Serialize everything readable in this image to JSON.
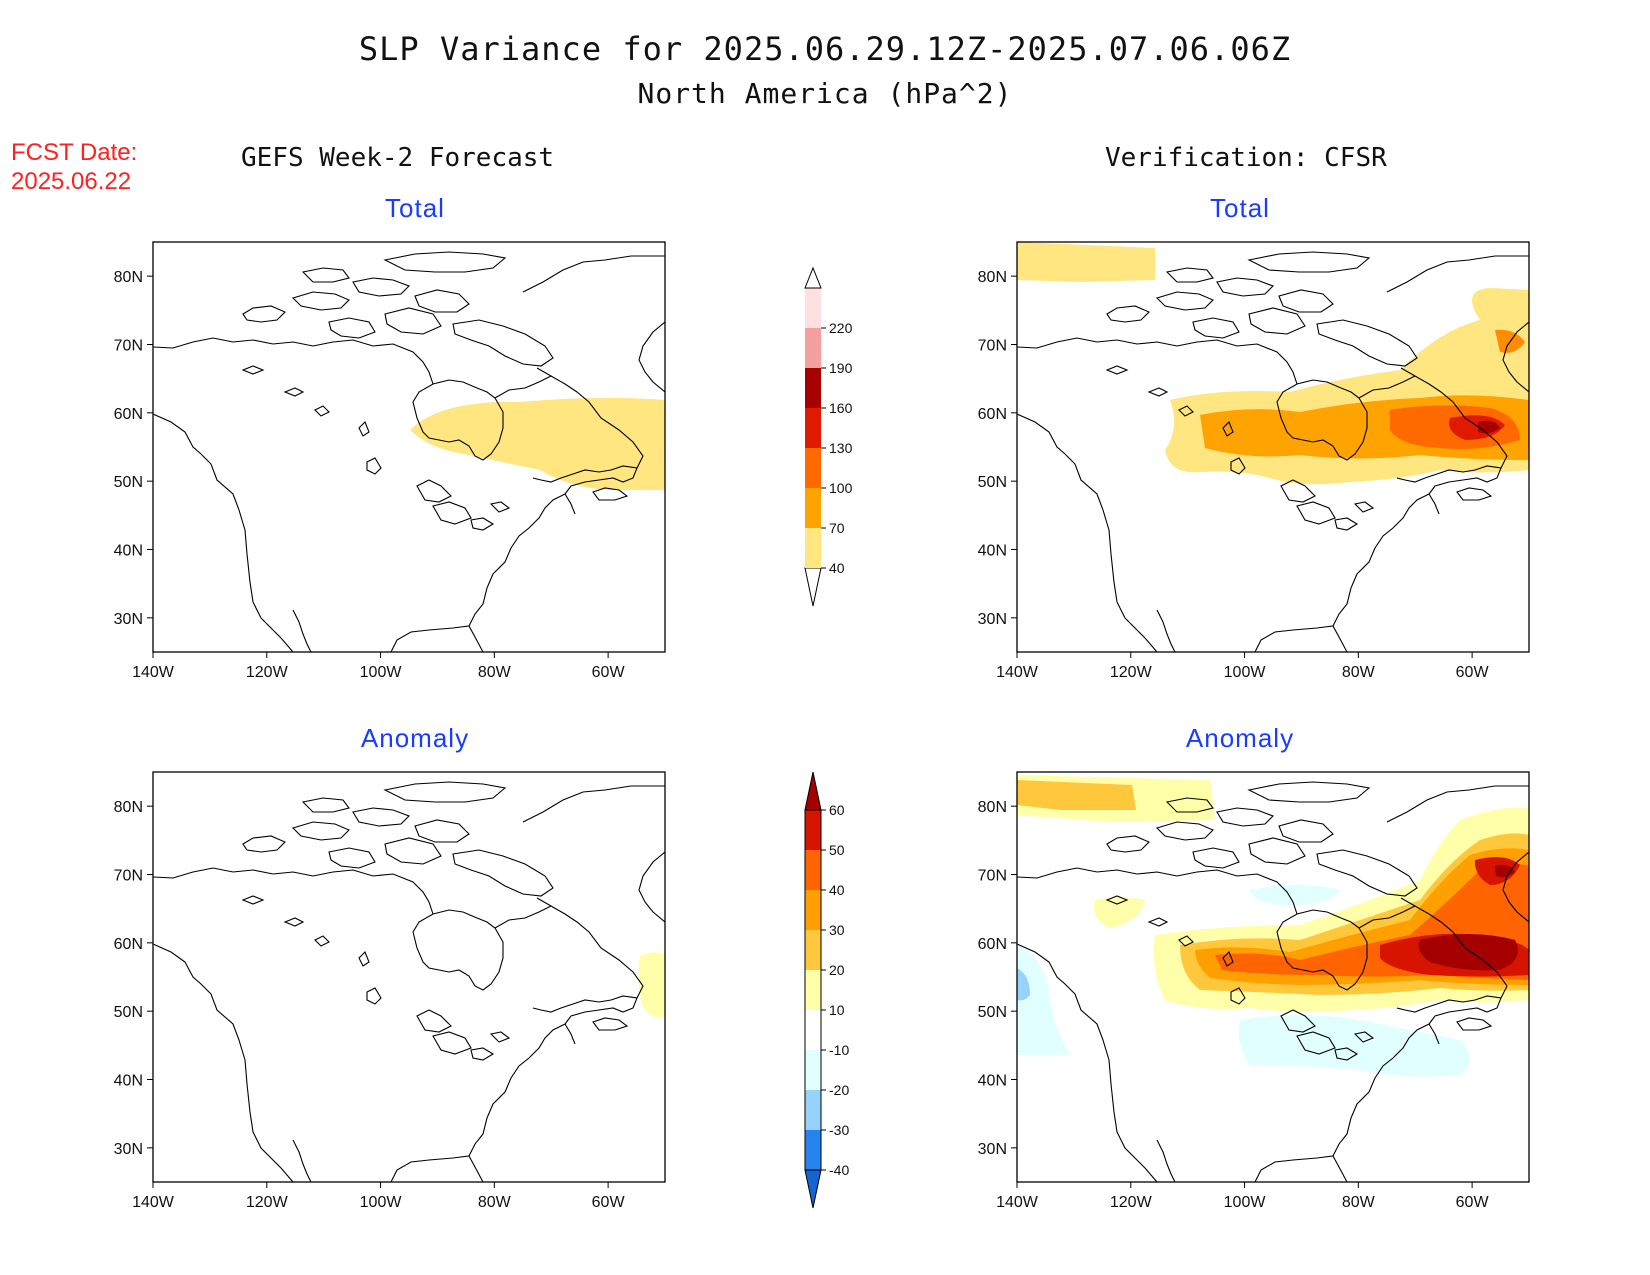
{
  "title": "SLP Variance for 2025.06.29.12Z-2025.07.06.06Z",
  "subtitle": "North America (hPa^2)",
  "fcst_date_label": "FCST Date:",
  "fcst_date": "2025.06.22",
  "left_column_heading": "GEFS Week-2 Forecast",
  "right_column_heading": "Verification: CFSR",
  "panels": {
    "tl": {
      "title": "Total"
    },
    "tr": {
      "title": "Total"
    },
    "bl": {
      "title": "Anomaly"
    },
    "br": {
      "title": "Anomaly"
    }
  },
  "axes": {
    "lat_ticks": [
      "80N",
      "70N",
      "60N",
      "50N",
      "40N",
      "30N"
    ],
    "lon_ticks": [
      "140W",
      "120W",
      "100W",
      "80W",
      "60W"
    ],
    "lat_range": [
      25,
      85
    ],
    "lon_range": [
      -140,
      -50
    ]
  },
  "total_colorbar": {
    "levels": [
      "40",
      "70",
      "100",
      "130",
      "160",
      "190",
      "220"
    ],
    "colors": [
      "#ffe680",
      "#ffa300",
      "#ff6a00",
      "#e01a00",
      "#a60000",
      "#f4a0a0",
      "#fde0e0"
    ]
  },
  "anomaly_colorbar": {
    "levels": [
      "-40",
      "-30",
      "-20",
      "-10",
      "10",
      "20",
      "30",
      "40",
      "50",
      "60"
    ],
    "colors": [
      "#1464d2",
      "#2882f0",
      "#96d2fa",
      "#e0fffe",
      "#ffffff",
      "#ffffaa",
      "#ffc83c",
      "#ffa000",
      "#ff6400",
      "#d71400",
      "#a50000"
    ]
  },
  "chart_data": {
    "type": "heatmap",
    "variable": "SLP Variance",
    "units": "hPa^2",
    "period": "2025.06.29.12Z-2025.07.06.06Z",
    "region": "North America",
    "panels": [
      {
        "name": "GEFS Week-2 Forecast Total",
        "max_range": "40-70",
        "regions": [
          {
            "area": "Hudson Bay to Labrador 48-60N 90-50W",
            "range": "40-70"
          }
        ]
      },
      {
        "name": "Verification: CFSR Total",
        "max_range": "130-160",
        "regions": [
          {
            "area": "Arctic north of Alaska ~82N 140-115W",
            "range": "40-70"
          },
          {
            "area": "Canada band 50-62N 110-50W",
            "range": "40-70"
          },
          {
            "area": "Canada core 55-60N 105-55W",
            "range": "70-100"
          },
          {
            "area": "Labrador 55-60N 70-55W",
            "range": "100-130"
          },
          {
            "area": "Labrador center ~57N 58W",
            "range": "130-160"
          },
          {
            "area": "West Greenland 65-78N 60-50W",
            "range": "40-70"
          }
        ]
      },
      {
        "name": "GEFS Week-2 Forecast Anomaly",
        "max_range": "10-20",
        "regions": [
          {
            "area": "Labrador coast 50-58N 52-50W",
            "range": "10-20"
          }
        ]
      },
      {
        "name": "Verification: CFSR Anomaly",
        "max_range": "50-60+",
        "regions": [
          {
            "area": "Arctic north of Alaska ~82N 140-120W",
            "range": "20-40"
          },
          {
            "area": "Canada band 50-62N 110-50W",
            "range": "10-30"
          },
          {
            "area": "Canada core 55-60N 105-80W",
            "range": "30-50"
          },
          {
            "area": "Labrador 54-62N 70-50W",
            "range": "50-60+"
          },
          {
            "area": "Baffin/West Greenland ~70N 55W",
            "range": "50-60+"
          },
          {
            "area": "Pacific coast 50-55N 140-130W",
            "range": "-20 to -10"
          },
          {
            "area": "Great Lakes 43-48N 100-75W",
            "range": "-20 to -10"
          }
        ]
      }
    ]
  }
}
